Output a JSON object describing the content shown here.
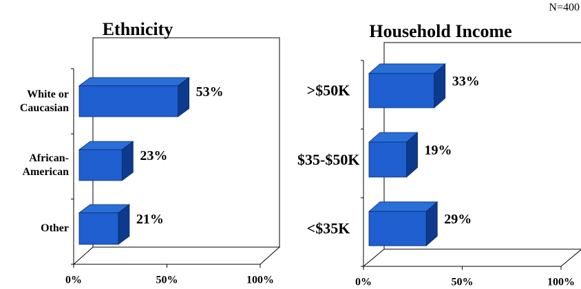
{
  "note": "N=400",
  "chart_data": [
    {
      "type": "bar3d",
      "title": "Ethnicity",
      "categories": [
        "White or Caucasian",
        "African-American",
        "Other"
      ],
      "values": [
        53,
        23,
        21
      ],
      "value_labels": [
        "53%",
        "23%",
        "21%"
      ],
      "color": "#1f5fcf",
      "xlim": [
        0,
        100
      ],
      "xticks": [
        {
          "value": 0,
          "label": "0%"
        },
        {
          "value": 50,
          "label": "50%"
        },
        {
          "value": 100,
          "label": "100%"
        }
      ]
    },
    {
      "type": "bar3d",
      "title": "Household Income",
      "categories": [
        ">$50K",
        "$35-$50K",
        "<$35K"
      ],
      "values": [
        33,
        19,
        29
      ],
      "value_labels": [
        "33%",
        "19%",
        "29%"
      ],
      "color": "#1f5fcf",
      "xlim": [
        0,
        100
      ],
      "xticks": [
        {
          "value": 0,
          "label": "0%"
        },
        {
          "value": 50,
          "label": "50%"
        },
        {
          "value": 100,
          "label": "100%"
        }
      ]
    }
  ]
}
